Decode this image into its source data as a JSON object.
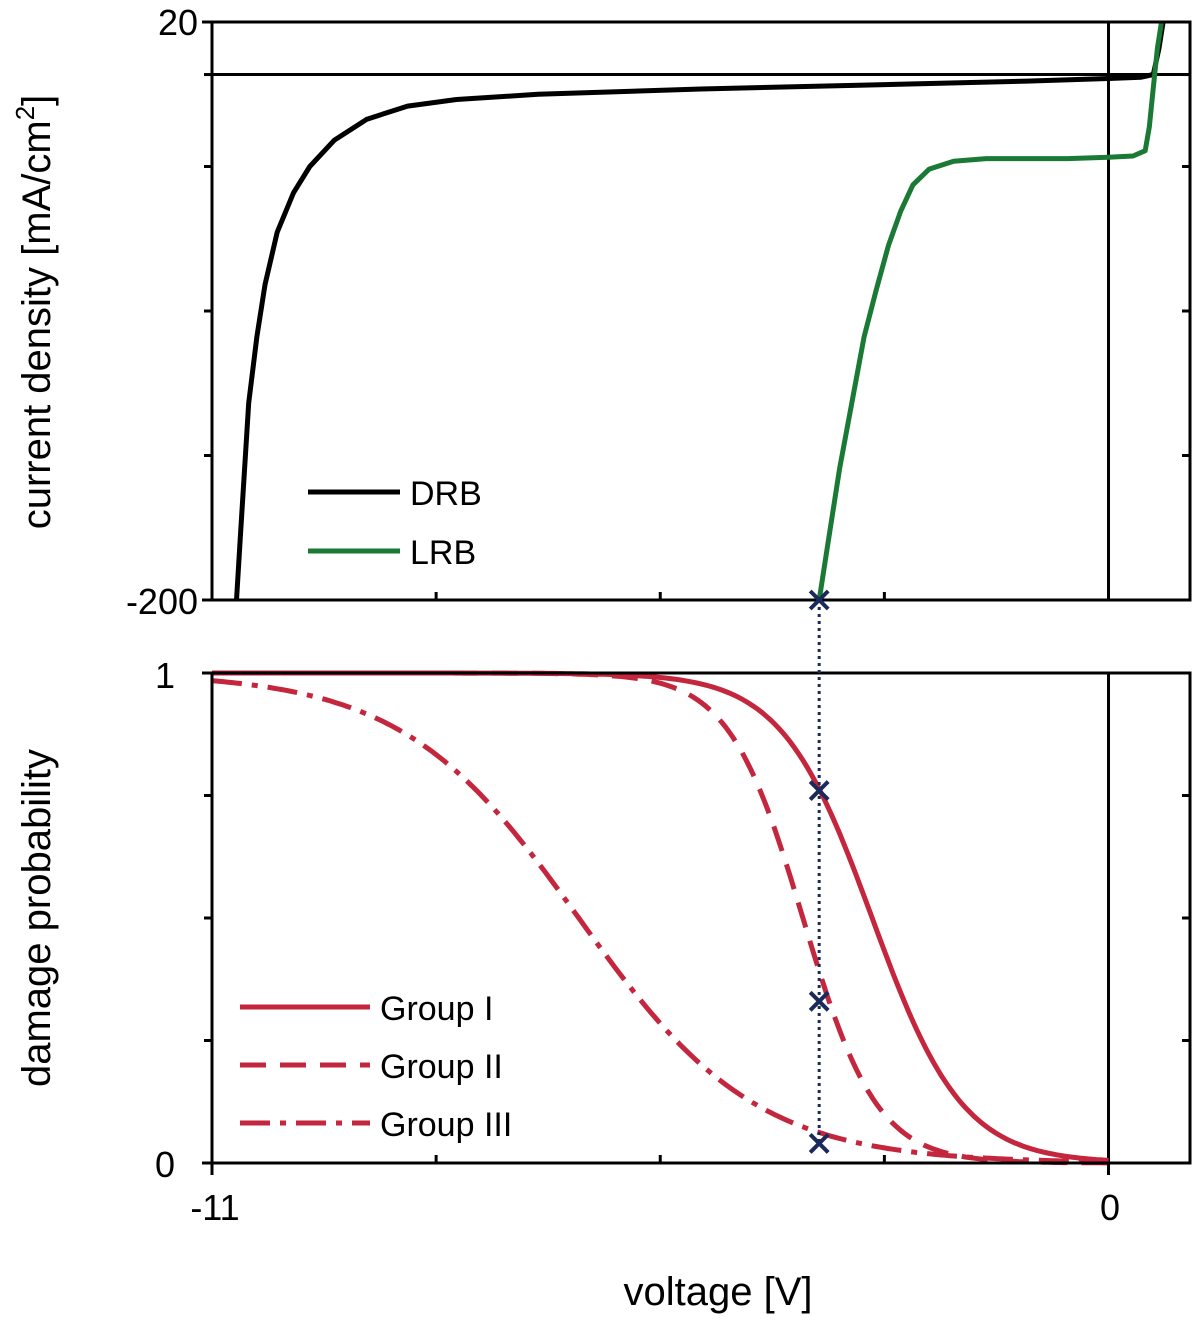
{
  "chart_data": [
    {
      "type": "line",
      "name": "top-panel",
      "ylabel": "current density [mA/cm",
      "ylabel_sup": "2",
      "ylabel_close": "]",
      "xlim": [
        -11,
        1
      ],
      "ylim": [
        -200,
        20
      ],
      "y_tick_labels": [
        {
          "value": 20,
          "label": "20"
        },
        {
          "value": -200,
          "label": "-200"
        }
      ],
      "y_minor_ticks": [
        0,
        -35,
        -90,
        -145
      ],
      "x_minor_ticks": [
        -8.25,
        -5.5,
        -2.75
      ],
      "reference_lines": {
        "horizontal_y": 0,
        "vertical_x": 0
      },
      "series": [
        {
          "name": "DRB",
          "color": "#000000",
          "dash": "solid",
          "points": [
            [
              -10.7,
              -200
            ],
            [
              -10.65,
              -175
            ],
            [
              -10.6,
              -150
            ],
            [
              -10.55,
              -125
            ],
            [
              -10.45,
              -100
            ],
            [
              -10.35,
              -80
            ],
            [
              -10.2,
              -60
            ],
            [
              -10.0,
              -45
            ],
            [
              -9.8,
              -35
            ],
            [
              -9.5,
              -25
            ],
            [
              -9.1,
              -17
            ],
            [
              -8.6,
              -12
            ],
            [
              -8.0,
              -9.5
            ],
            [
              -7.0,
              -7.5
            ],
            [
              -5.0,
              -5.5
            ],
            [
              -3.0,
              -4
            ],
            [
              -1.0,
              -2.5
            ],
            [
              0.0,
              -1.5
            ],
            [
              0.4,
              -1.0
            ],
            [
              0.55,
              0
            ],
            [
              0.62,
              10
            ],
            [
              0.67,
              20
            ]
          ]
        },
        {
          "name": "LRB",
          "color": "#1a7a35",
          "dash": "solid",
          "points": [
            [
              -3.55,
              -200
            ],
            [
              -3.45,
              -180
            ],
            [
              -3.3,
              -150
            ],
            [
              -3.15,
              -125
            ],
            [
              -3.0,
              -100
            ],
            [
              -2.85,
              -82
            ],
            [
              -2.7,
              -65
            ],
            [
              -2.55,
              -52
            ],
            [
              -2.4,
              -42
            ],
            [
              -2.2,
              -36
            ],
            [
              -1.9,
              -33
            ],
            [
              -1.5,
              -32
            ],
            [
              -1.0,
              -32
            ],
            [
              -0.5,
              -32
            ],
            [
              0.0,
              -31.5
            ],
            [
              0.3,
              -31
            ],
            [
              0.45,
              -29
            ],
            [
              0.5,
              -20
            ],
            [
              0.55,
              -5
            ],
            [
              0.6,
              10
            ],
            [
              0.65,
              20
            ]
          ]
        }
      ],
      "legend": {
        "placement": "bottom-left",
        "entries": [
          "DRB",
          "LRB"
        ]
      },
      "markers": [
        {
          "x": -3.55,
          "y": -200,
          "symbol": "x",
          "color": "#1a2a5a"
        }
      ]
    },
    {
      "type": "line",
      "name": "bottom-panel",
      "xlabel": "voltage [V]",
      "ylabel": "damage probability",
      "xlim": [
        -11,
        1
      ],
      "ylim": [
        0,
        1
      ],
      "x_tick_labels": [
        {
          "value": -11,
          "label": "-11"
        },
        {
          "value": 0,
          "label": "0"
        }
      ],
      "x_minor_ticks": [
        -8.25,
        -5.5,
        -2.75
      ],
      "y_tick_labels": [
        {
          "value": 1,
          "label": "1"
        },
        {
          "value": 0,
          "label": "0"
        }
      ],
      "y_minor_ticks": [
        0.25,
        0.5,
        0.75
      ],
      "reference_lines": {
        "vertical_x": 0
      },
      "series": [
        {
          "name": "Group I",
          "color": "#c4263d",
          "dash": "solid",
          "logistic": {
            "center": -2.9,
            "slope": 1.8
          }
        },
        {
          "name": "Group II",
          "color": "#c4263d",
          "dash": "dashed",
          "logistic": {
            "center": -3.75,
            "slope": 2.2
          }
        },
        {
          "name": "Group III",
          "color": "#c4263d",
          "dash": "dashdot",
          "logistic": {
            "center": -6.5,
            "slope": 0.92
          }
        }
      ],
      "legend": {
        "placement": "bottom-left",
        "entries": [
          "Group I",
          "Group II",
          "Group III"
        ]
      },
      "markers": [
        {
          "x": -3.55,
          "y": 0.76,
          "symbol": "x",
          "color": "#1a2a5a"
        },
        {
          "x": -3.55,
          "y": 0.33,
          "symbol": "x",
          "color": "#1a2a5a"
        },
        {
          "x": -3.55,
          "y": 0.04,
          "symbol": "x",
          "color": "#1a2a5a"
        }
      ],
      "connector": {
        "x": -3.55,
        "style": "dotted",
        "color": "#1a2a5a"
      }
    }
  ]
}
